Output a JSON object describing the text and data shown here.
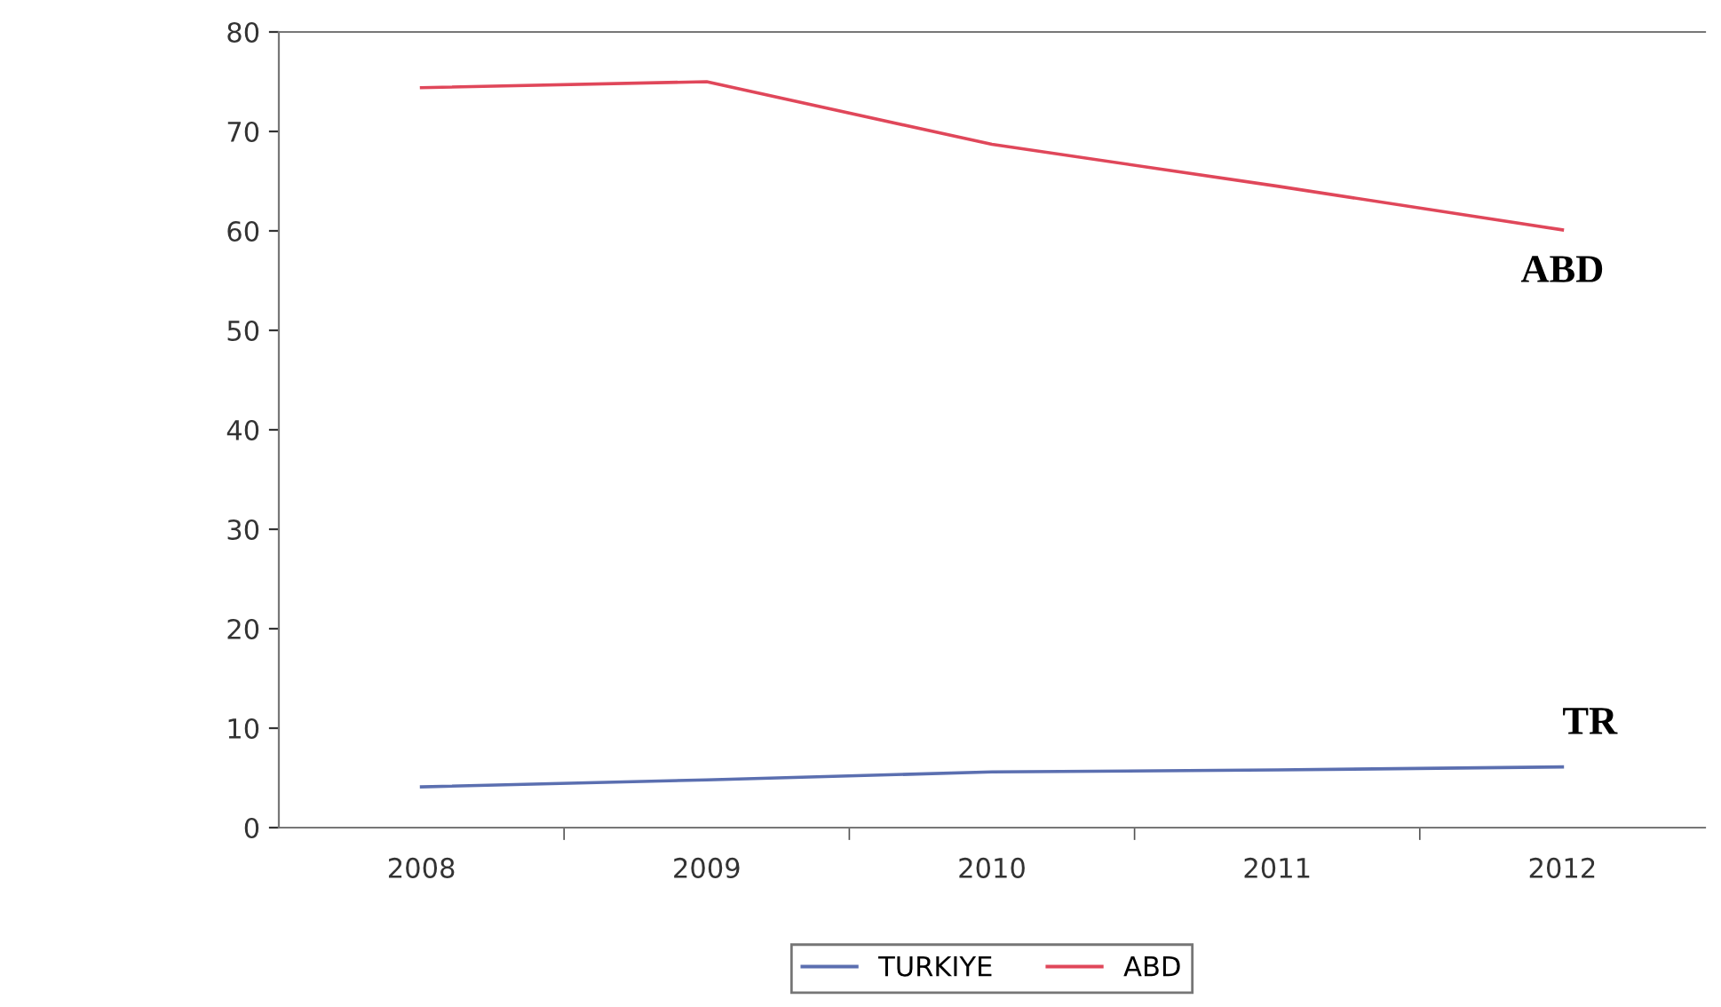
{
  "chart_data": {
    "type": "line",
    "categories": [
      "2008",
      "2009",
      "2010",
      "2011",
      "2012"
    ],
    "series": [
      {
        "name": "TURKIYE",
        "color": "#5b6fb0",
        "values": [
          4.1,
          4.8,
          5.6,
          5.8,
          6.1
        ]
      },
      {
        "name": "ABD",
        "color": "#e0475a",
        "values": [
          74.4,
          75.0,
          68.7,
          64.5,
          60.1
        ]
      }
    ],
    "annotations": [
      {
        "text": "ABD",
        "x": "2012",
        "y": 60.1
      },
      {
        "text": "TR",
        "x": "2012",
        "y": 6.1
      }
    ],
    "ylim": [
      0,
      80
    ],
    "yticks": [
      0,
      10,
      20,
      30,
      40,
      50,
      60,
      70,
      80
    ],
    "grid": false,
    "legend": "bottom",
    "marker": "none",
    "line_style": "solid"
  }
}
